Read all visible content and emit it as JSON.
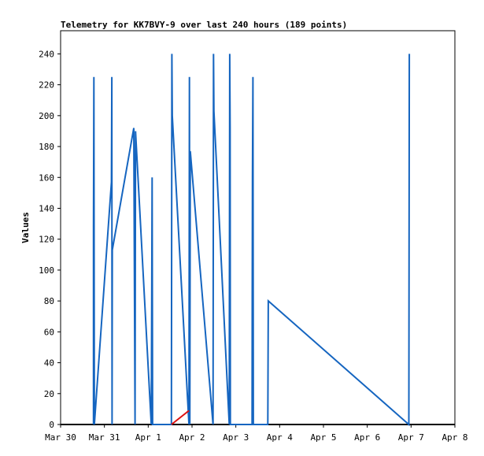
{
  "chart_data": {
    "type": "line",
    "title": "Telemetry for KK7BVY-9 over last 240 hours (189 points)",
    "xlabel": "",
    "ylabel": "Values",
    "x_unit": "days",
    "x_ticks": [
      {
        "label": "Mar 30",
        "x": 0
      },
      {
        "label": "Mar 31",
        "x": 1
      },
      {
        "label": "Apr 1",
        "x": 2
      },
      {
        "label": "Apr 2",
        "x": 3
      },
      {
        "label": "Apr 3",
        "x": 4
      },
      {
        "label": "Apr 4",
        "x": 5
      },
      {
        "label": "Apr 5",
        "x": 6
      },
      {
        "label": "Apr 6",
        "x": 7
      },
      {
        "label": "Apr 7",
        "x": 8
      },
      {
        "label": "Apr 8",
        "x": 9
      }
    ],
    "xlim": [
      0,
      9
    ],
    "ylim": [
      0,
      255
    ],
    "y_ticks": [
      0,
      20,
      40,
      60,
      80,
      100,
      120,
      140,
      160,
      180,
      200,
      220,
      240
    ],
    "grid": false,
    "series": [
      {
        "color": "#1565c0",
        "points": [
          [
            0.75,
            0
          ],
          [
            0.75,
            128
          ],
          [
            0.76,
            225
          ],
          [
            0.77,
            0
          ],
          [
            1.16,
            157
          ],
          [
            1.17,
            225
          ],
          [
            1.175,
            0
          ],
          [
            1.18,
            113
          ],
          [
            1.67,
            192
          ],
          [
            1.7,
            0
          ],
          [
            1.71,
            190
          ],
          [
            2.07,
            0
          ],
          [
            2.08,
            80
          ],
          [
            2.09,
            160
          ],
          [
            2.1,
            0
          ],
          [
            2.53,
            0
          ],
          [
            2.54,
            240
          ],
          [
            2.55,
            200
          ],
          [
            2.93,
            0
          ],
          [
            2.935,
            110
          ],
          [
            2.94,
            225
          ],
          [
            2.95,
            0
          ],
          [
            2.96,
            177
          ],
          [
            3.48,
            0
          ],
          [
            3.49,
            240
          ],
          [
            3.5,
            203
          ],
          [
            3.85,
            0
          ],
          [
            3.86,
            240
          ],
          [
            3.87,
            192
          ],
          [
            3.875,
            0
          ],
          [
            4.37,
            0
          ],
          [
            4.375,
            80
          ],
          [
            4.38,
            160
          ],
          [
            4.39,
            225
          ],
          [
            4.4,
            0
          ],
          [
            4.73,
            0
          ],
          [
            4.74,
            80
          ],
          [
            7.95,
            0
          ],
          [
            7.96,
            240
          ]
        ]
      },
      {
        "color": "#dd1111",
        "points": [
          [
            2.53,
            0
          ],
          [
            2.93,
            9
          ]
        ]
      }
    ]
  }
}
